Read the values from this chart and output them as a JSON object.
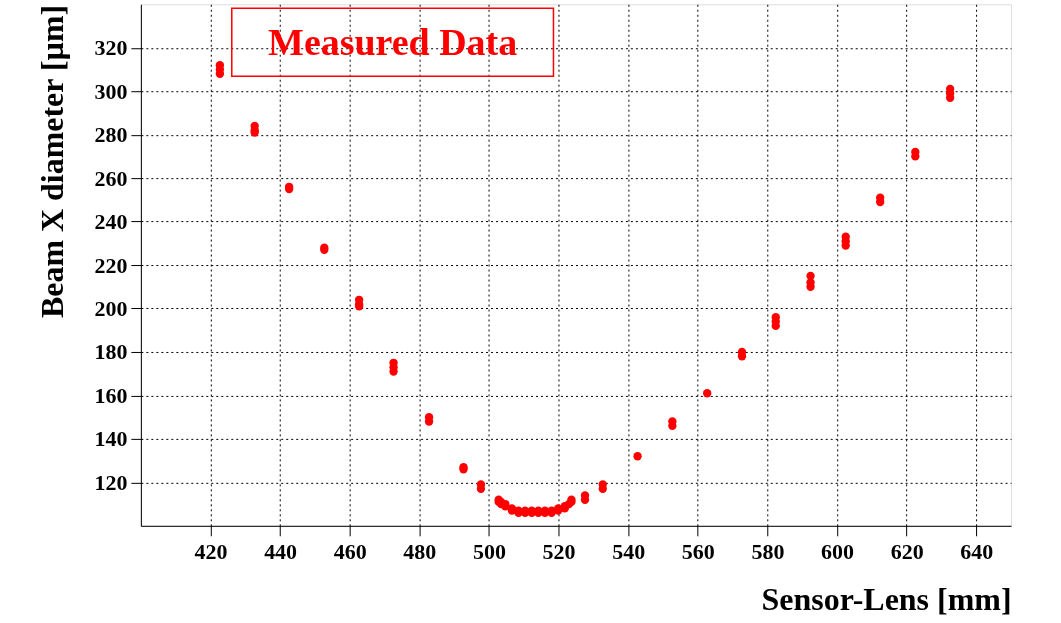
{
  "chart_data": {
    "type": "scatter",
    "xlabel": "Sensor-Lens [mm]",
    "ylabel": "Beam X diameter [µm]",
    "annotations": [
      "Measured Data"
    ],
    "xlim": [
      400,
      650
    ],
    "xticks": [
      420,
      440,
      460,
      480,
      500,
      520,
      540,
      560,
      580,
      600,
      620,
      640
    ],
    "ylim": [
      100,
      340
    ],
    "yticks": [
      120,
      140,
      160,
      180,
      200,
      220,
      240,
      260,
      280,
      300,
      320
    ],
    "grid": true,
    "marker": "circle",
    "series": [
      {
        "color": "#ff0000",
        "x": [
          422.7,
          422.7,
          422.7,
          432.7,
          432.7,
          432.7,
          442.6,
          442.6,
          452.7,
          452.7,
          462.7,
          462.7,
          462.7,
          472.6,
          472.6,
          472.6,
          482.8,
          482.8,
          492.7,
          492.7,
          497.7,
          497.7,
          502.8,
          502.8,
          503.5,
          503.5,
          504.7,
          504.7,
          506.6,
          506.6,
          508.5,
          508.5,
          510.4,
          510.4,
          512.3,
          512.3,
          514.2,
          514.2,
          516.1,
          516.1,
          518,
          518,
          519.9,
          519.9,
          521.8,
          521.8,
          523,
          523.7,
          523.7,
          527.6,
          527.6,
          532.7,
          532.7,
          542.7,
          552.7,
          552.7,
          562.7,
          572.7,
          572.7,
          582.4,
          582.4,
          582.4,
          592.4,
          592.4,
          592.4,
          602.5,
          602.5,
          602.5,
          612.4,
          612.4,
          622.5,
          622.5,
          632.5,
          632.5,
          632.5
        ],
        "values": [
          312,
          310,
          308,
          284,
          282,
          281,
          256,
          255,
          228,
          227,
          204,
          202,
          201,
          175,
          173,
          171,
          150,
          148,
          127,
          126,
          119,
          117,
          112,
          111,
          111,
          110,
          110,
          109,
          108,
          107,
          107,
          106,
          106,
          107,
          106,
          107,
          106,
          107,
          106,
          107,
          107,
          106,
          107,
          108,
          108,
          109,
          110,
          111,
          112,
          114,
          112,
          119,
          117,
          132,
          148,
          146,
          161,
          180,
          178,
          196,
          194,
          192,
          215,
          212,
          210,
          233,
          231,
          229,
          251,
          249,
          272,
          270,
          301,
          299,
          297
        ]
      }
    ]
  }
}
